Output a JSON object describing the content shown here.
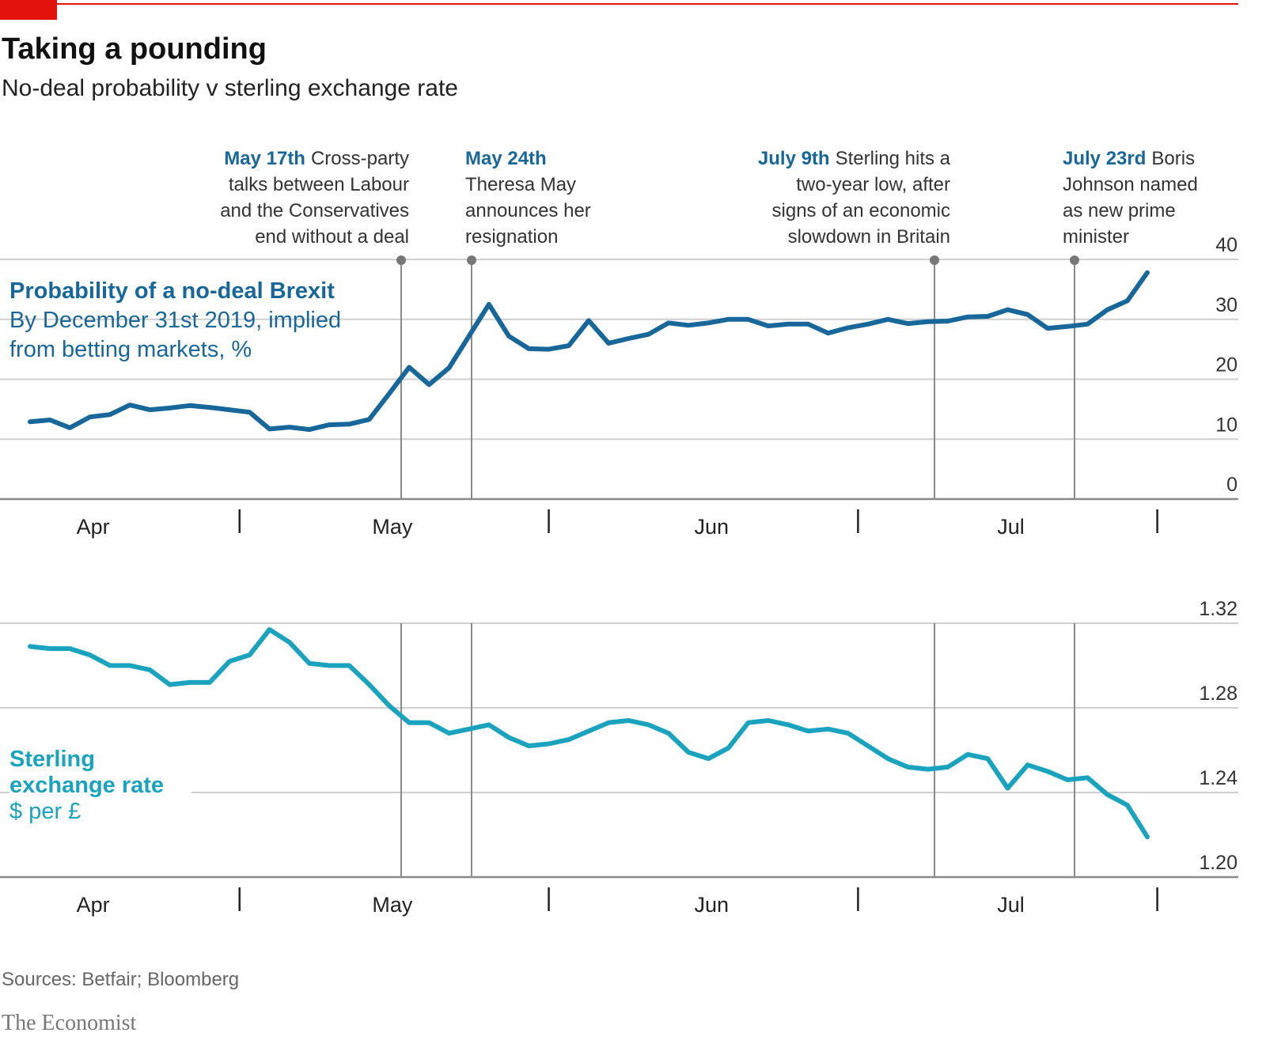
{
  "header": {
    "title": "Taking a pounding",
    "subtitle": "No-deal probability v sterling exchange rate"
  },
  "chart_data": [
    {
      "type": "line",
      "categories": [
        null,
        null,
        null,
        "Apr",
        null,
        null,
        null,
        null,
        null,
        null,
        null,
        null,
        null,
        null,
        null,
        null,
        null,
        null,
        "May",
        null,
        null,
        null,
        null,
        null,
        null,
        null,
        null,
        null,
        null,
        null,
        null,
        null,
        null,
        null,
        "Jun",
        null,
        null,
        null,
        null,
        null,
        null,
        null,
        null,
        null,
        null,
        null,
        null,
        null,
        null,
        "Jul",
        null,
        null,
        null,
        null,
        null,
        null,
        null
      ],
      "series": [
        {
          "name": "Probability of a no-deal Brexit",
          "color": "#17679a",
          "values": [
            12.9,
            13.2,
            11.9,
            13.7,
            14.1,
            15.7,
            14.9,
            15.2,
            15.6,
            15.3,
            14.9,
            14.5,
            11.7,
            12.0,
            11.6,
            12.4,
            12.5,
            13.3,
            17.6,
            22.0,
            19.1,
            21.9,
            27.2,
            32.5,
            27.2,
            25.1,
            25.0,
            25.6,
            29.8,
            26.0,
            26.8,
            27.5,
            29.4,
            29.0,
            29.4,
            30.0,
            30.0,
            28.9,
            29.2,
            29.2,
            27.7,
            28.6,
            29.2,
            30.0,
            29.3,
            29.6,
            29.7,
            30.4,
            30.5,
            31.6,
            30.8,
            28.5,
            28.8,
            29.2,
            31.6,
            33.1,
            37.8
          ]
        }
      ],
      "description": "By December 31st 2019, implied from betting markets, %",
      "ylim": [
        0,
        40
      ],
      "yticks": [
        0,
        10,
        20,
        30,
        40
      ],
      "grid": true,
      "annotations": [
        {
          "date": "May 17th",
          "lines": [
            "Cross-party",
            "talks between Labour",
            "and the Conservatives",
            "end without a deal"
          ]
        },
        {
          "date": "May 24th",
          "lines": [
            "Theresa May",
            "announces her",
            "resignation"
          ]
        },
        {
          "date": "July 9th",
          "lines": [
            "Sterling hits a",
            "two-year low, after",
            "signs of an economic",
            "slowdown in Britain"
          ]
        },
        {
          "date": "July 23rd",
          "lines": [
            "Boris",
            "Johnson named",
            "as new prime",
            "minister"
          ]
        }
      ]
    },
    {
      "type": "line",
      "categories": [
        null,
        null,
        null,
        "Apr",
        null,
        null,
        null,
        null,
        null,
        null,
        null,
        null,
        null,
        null,
        null,
        null,
        null,
        null,
        "May",
        null,
        null,
        null,
        null,
        null,
        null,
        null,
        null,
        null,
        null,
        null,
        null,
        null,
        null,
        null,
        "Jun",
        null,
        null,
        null,
        null,
        null,
        null,
        null,
        null,
        null,
        null,
        null,
        null,
        null,
        null,
        "Jul",
        null,
        null,
        null,
        null,
        null,
        null,
        null
      ],
      "series": [
        {
          "name": "Sterling exchange rate",
          "color": "#1aa3bf",
          "values": [
            1.309,
            1.308,
            1.308,
            1.305,
            1.3,
            1.3,
            1.298,
            1.291,
            1.292,
            1.292,
            1.302,
            1.305,
            1.317,
            1.311,
            1.301,
            1.3,
            1.3,
            1.291,
            1.281,
            1.273,
            1.273,
            1.268,
            1.27,
            1.272,
            1.266,
            1.262,
            1.263,
            1.265,
            1.269,
            1.273,
            1.274,
            1.272,
            1.268,
            1.259,
            1.256,
            1.261,
            1.273,
            1.274,
            1.272,
            1.269,
            1.27,
            1.268,
            1.262,
            1.256,
            1.252,
            1.251,
            1.252,
            1.258,
            1.256,
            1.242,
            1.253,
            1.25,
            1.246,
            1.247,
            1.239,
            1.234,
            1.219
          ]
        }
      ],
      "description": "$ per £",
      "ylim": [
        1.2,
        1.32
      ],
      "yticks": [
        {
          "value": 1.2,
          "label": "1.20"
        },
        1.24,
        1.28,
        1.32
      ],
      "grid": true
    }
  ],
  "footer": {
    "source": "Sources: Betfair; Bloomberg",
    "brand": "The Economist"
  }
}
